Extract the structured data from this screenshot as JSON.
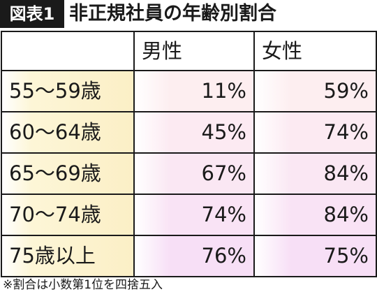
{
  "header": {
    "badge": "図表1",
    "title": "非正規社員の年齢別割合"
  },
  "footnote": "※割合は小数第1位を四捨五入",
  "colors": {
    "label_cell": "#fbefc6",
    "value_cell_top": "#fdeef0",
    "value_cell_bottom": "#f7dff6",
    "border": "#1a1a1a",
    "badge_bg": "#1a1a1a"
  },
  "chart_data": {
    "type": "table",
    "columns": [
      "",
      "男性",
      "女性"
    ],
    "rows": [
      {
        "label": "55〜59歳",
        "male": "11%",
        "female": "59%"
      },
      {
        "label": "60〜64歳",
        "male": "45%",
        "female": "74%"
      },
      {
        "label": "65〜69歳",
        "male": "67%",
        "female": "84%"
      },
      {
        "label": "70〜74歳",
        "male": "74%",
        "female": "84%"
      },
      {
        "label": "75歳以上",
        "male": "76%",
        "female": "75%"
      }
    ]
  }
}
